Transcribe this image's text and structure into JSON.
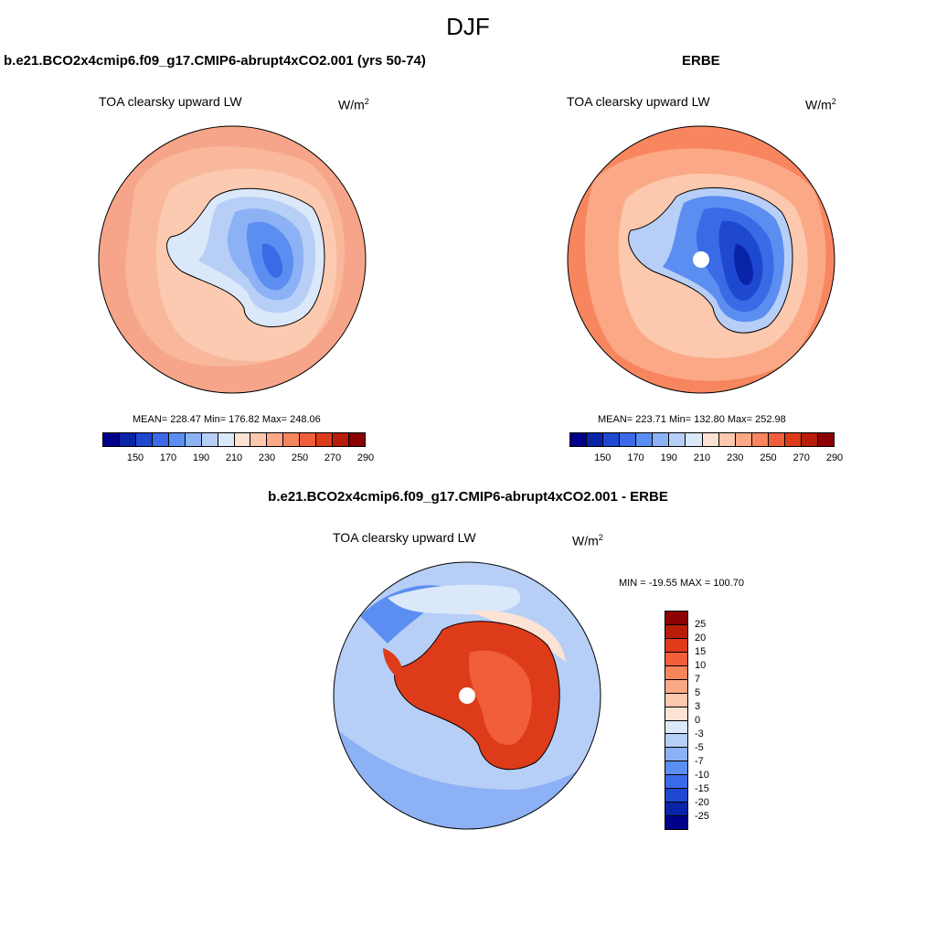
{
  "figure_title": "DJF",
  "panels": [
    {
      "title": "b.e21.BCO2x4cmip6.f09_g17.CMIP6-abrupt4xCO2.001 (yrs 50-74)",
      "variable": "TOA clearsky upward LW",
      "units_base": "W/m",
      "units_exp": "2",
      "stats": "MEAN= 228.47  Min= 176.82  Max= 248.06"
    },
    {
      "title": "ERBE",
      "variable": "TOA clearsky upward LW",
      "units_base": "W/m",
      "units_exp": "2",
      "stats": "MEAN= 223.71  Min= 132.80  Max= 252.98"
    },
    {
      "title": "b.e21.BCO2x4cmip6.f09_g17.CMIP6-abrupt4xCO2.001 - ERBE",
      "variable": "TOA clearsky upward LW",
      "units_base": "W/m",
      "units_exp": "2",
      "stats": "MIN = -19.55 MAX = 100.70"
    }
  ],
  "colorbar_abs": {
    "colors": [
      "#00008b",
      "#0a24a8",
      "#1f48d0",
      "#3a6ae6",
      "#5b8ef0",
      "#8cb1f5",
      "#b7cff7",
      "#dbe8f9",
      "#fde3d3",
      "#fcc8ae",
      "#fba886",
      "#f7865f",
      "#f15f3a",
      "#dd3b1a",
      "#b81d0a",
      "#8b0000"
    ],
    "tick_labels": [
      "150",
      "170",
      "190",
      "210",
      "230",
      "250",
      "270",
      "290"
    ]
  },
  "colorbar_diff": {
    "colors": [
      "#8b0000",
      "#b81d0a",
      "#dd3b1a",
      "#f15f3a",
      "#f7865f",
      "#fba886",
      "#fcc8ae",
      "#fde3d3",
      "#dbe8f9",
      "#b7cff7",
      "#8cb1f5",
      "#5b8ef0",
      "#3a6ae6",
      "#1f48d0",
      "#0a24a8",
      "#00008b"
    ],
    "tick_labels": [
      "25",
      "20",
      "15",
      "10",
      "7",
      "5",
      "3",
      "0",
      "-3",
      "-5",
      "-7",
      "-10",
      "-15",
      "-20",
      "-25"
    ]
  }
}
